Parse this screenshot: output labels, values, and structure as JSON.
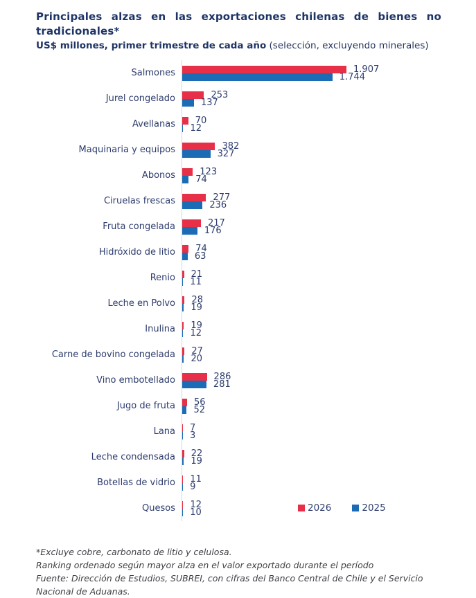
{
  "header": {
    "title_line1": "Principales alzas en las exportaciones chilenas de bienes no",
    "title_line2": "tradicionales*",
    "subtitle_bold": "US$ millones, primer trimestre de cada año",
    "subtitle_normal": " (selección, excluyendo minerales)"
  },
  "chart_data": {
    "type": "bar",
    "orientation": "horizontal",
    "title": "Principales alzas en las exportaciones chilenas de bienes no tradicionales*",
    "subtitle": "US$ millones, primer trimestre de cada año (selección, excluyendo minerales)",
    "unit": "US$ millones",
    "grid": false,
    "legend_position": "bottom-right",
    "xlim": [
      0,
      2000
    ],
    "categories": [
      "Salmones",
      "Jurel congelado",
      "Avellanas",
      "Maquinaria y equipos",
      "Abonos",
      "Ciruelas frescas",
      "Fruta congelada",
      "Hidróxido de litio",
      "Renio",
      "Leche en Polvo",
      "Inulina",
      "Carne de bovino congelada",
      "Vino embotellado",
      "Jugo de fruta",
      "Lana",
      "Leche condensada",
      "Botellas de vidrio",
      "Quesos"
    ],
    "series": [
      {
        "name": "2026",
        "color": "#E73048",
        "values": [
          1907,
          253,
          70,
          382,
          123,
          277,
          217,
          74,
          21,
          28,
          19,
          27,
          286,
          56,
          7,
          22,
          11,
          12
        ],
        "value_labels": [
          "1.907",
          "253",
          "70",
          "382",
          "123",
          "277",
          "217",
          "74",
          "21",
          "28",
          "19",
          "27",
          "286",
          "56",
          "7",
          "22",
          "11",
          "12"
        ]
      },
      {
        "name": "2025",
        "color": "#1B6CB5",
        "values": [
          1744,
          137,
          12,
          327,
          74,
          236,
          176,
          63,
          11,
          19,
          12,
          20,
          281,
          52,
          3,
          19,
          9,
          10
        ],
        "value_labels": [
          "1.744",
          "137",
          "12",
          "327",
          "74",
          "236",
          "176",
          "63",
          "11",
          "19",
          "12",
          "20",
          "281",
          "52",
          "3",
          "19",
          "9",
          "10"
        ]
      }
    ]
  },
  "footnotes": [
    "*Excluye cobre, carbonato de litio y celulosa.",
    "Ranking ordenado según mayor alza en el valor exportado durante el período",
    "Fuente: Dirección de Estudios, SUBREI, con cifras del Banco Central de Chile y el Servicio Nacional de Aduanas."
  ],
  "colors": {
    "title": "#1F3566",
    "labels": "#2D3C6D",
    "series_2026": "#E73048",
    "series_2025": "#1B6CB5",
    "axis_line": "#d8d8de",
    "footnote": "#3f4045"
  }
}
